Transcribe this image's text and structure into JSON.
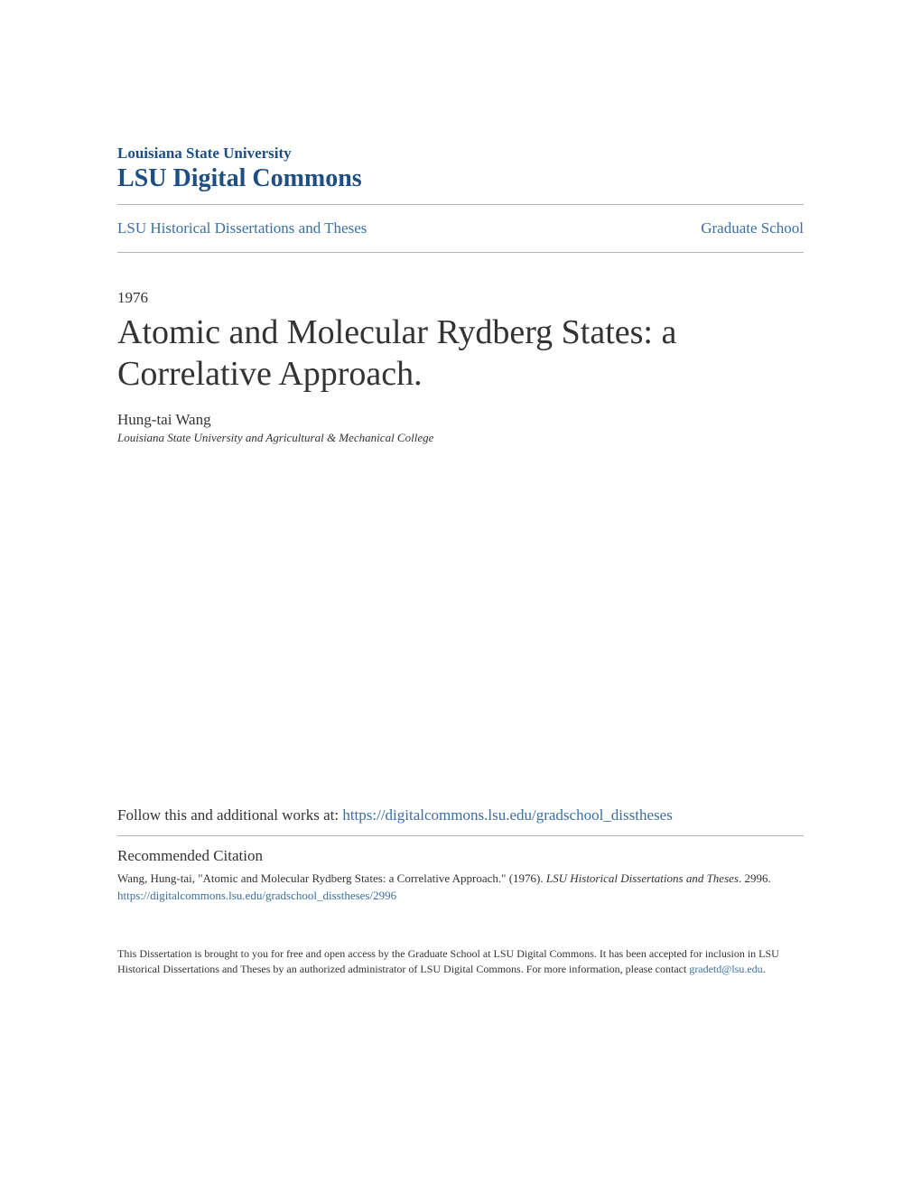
{
  "header": {
    "university": "Louisiana State University",
    "commons": "LSU Digital Commons"
  },
  "nav": {
    "left": "LSU Historical Dissertations and Theses",
    "right": "Graduate School"
  },
  "paper": {
    "year": "1976",
    "title": "Atomic and Molecular Rydberg States: a Correlative Approach.",
    "author": "Hung-tai Wang",
    "affiliation": "Louisiana State University and Agricultural & Mechanical College"
  },
  "follow": {
    "label": "Follow this and additional works at: ",
    "url": "https://digitalcommons.lsu.edu/gradschool_disstheses"
  },
  "citation": {
    "heading": "Recommended Citation",
    "text_part1": "Wang, Hung-tai, \"Atomic and Molecular Rydberg States: a Correlative Approach.\" (1976). ",
    "text_italic": "LSU Historical Dissertations and Theses",
    "text_part2": ". 2996.",
    "url": "https://digitalcommons.lsu.edu/gradschool_disstheses/2996"
  },
  "footer": {
    "text": "This Dissertation is brought to you for free and open access by the Graduate School at LSU Digital Commons. It has been accepted for inclusion in LSU Historical Dissertations and Theses by an authorized administrator of LSU Digital Commons. For more information, please contact ",
    "email": "gradetd@lsu.edu",
    "period": "."
  },
  "colors": {
    "brand": "#1d4f84",
    "link": "#3b6fa3",
    "text": "#333333",
    "divider": "#b5b5b5",
    "background": "#ffffff"
  }
}
